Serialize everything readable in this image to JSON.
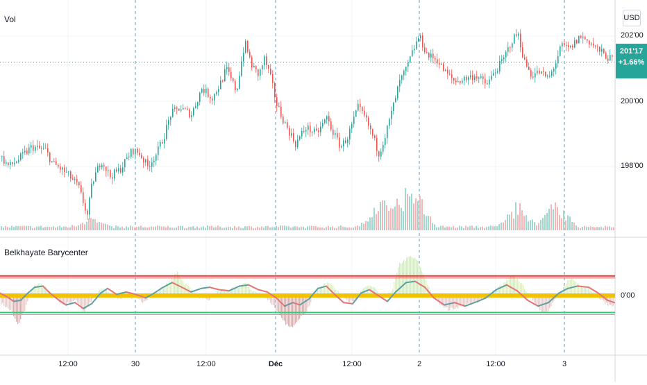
{
  "chart_data": [
    {
      "type": "candlestick",
      "series_label": "Vol",
      "currency": "USD",
      "last_price": "201'17",
      "change": "+1.66%",
      "y_ticks": [
        "202'00",
        "200'00",
        "198'00"
      ],
      "x_ticks": [
        "12:00",
        "30",
        "12:00",
        "Déc",
        "12:00",
        "2",
        "12:00",
        "3"
      ],
      "close_path": [
        [
          0,
          198.3
        ],
        [
          12,
          198.0
        ],
        [
          25,
          198.2
        ],
        [
          45,
          198.6
        ],
        [
          65,
          198.5
        ],
        [
          75,
          198.1
        ],
        [
          95,
          197.8
        ],
        [
          112,
          197.4
        ],
        [
          125,
          196.5
        ],
        [
          132,
          197.5
        ],
        [
          145,
          198.2
        ],
        [
          158,
          197.7
        ],
        [
          172,
          197.9
        ],
        [
          190,
          198.5
        ],
        [
          200,
          198.4
        ],
        [
          212,
          198.0
        ],
        [
          225,
          198.4
        ],
        [
          235,
          198.9
        ],
        [
          245,
          199.6
        ],
        [
          258,
          199.8
        ],
        [
          275,
          199.6
        ],
        [
          290,
          200.4
        ],
        [
          305,
          200.1
        ],
        [
          318,
          200.6
        ],
        [
          325,
          201.0
        ],
        [
          340,
          200.3
        ],
        [
          345,
          201.0
        ],
        [
          352,
          201.8
        ],
        [
          362,
          201.1
        ],
        [
          372,
          200.8
        ],
        [
          380,
          201.3
        ],
        [
          388,
          200.8
        ],
        [
          398,
          199.9
        ],
        [
          410,
          199.3
        ],
        [
          425,
          198.7
        ],
        [
          440,
          199.2
        ],
        [
          455,
          199.0
        ],
        [
          470,
          199.5
        ],
        [
          480,
          199.0
        ],
        [
          490,
          198.6
        ],
        [
          500,
          198.9
        ],
        [
          515,
          199.8
        ],
        [
          525,
          199.5
        ],
        [
          535,
          199.0
        ],
        [
          545,
          198.4
        ],
        [
          555,
          199.0
        ],
        [
          565,
          199.8
        ],
        [
          575,
          200.6
        ],
        [
          585,
          201.0
        ],
        [
          595,
          201.6
        ],
        [
          603,
          202.0
        ],
        [
          615,
          201.4
        ],
        [
          628,
          201.3
        ],
        [
          640,
          200.9
        ],
        [
          655,
          200.6
        ],
        [
          670,
          200.7
        ],
        [
          685,
          200.8
        ],
        [
          700,
          200.5
        ],
        [
          712,
          200.9
        ],
        [
          725,
          201.3
        ],
        [
          735,
          201.8
        ],
        [
          745,
          202.1
        ],
        [
          755,
          201.2
        ],
        [
          765,
          200.8
        ],
        [
          775,
          200.9
        ],
        [
          790,
          200.7
        ],
        [
          800,
          201.2
        ],
        [
          808,
          201.7
        ],
        [
          820,
          201.6
        ],
        [
          835,
          202.0
        ],
        [
          850,
          201.8
        ],
        [
          865,
          201.5
        ],
        [
          885,
          201.2
        ]
      ],
      "volume_bursts": [
        {
          "center": 130,
          "height": 14
        },
        {
          "center": 545,
          "height": 42
        },
        {
          "center": 575,
          "height": 40
        },
        {
          "center": 598,
          "height": 60
        },
        {
          "center": 745,
          "height": 40
        },
        {
          "center": 800,
          "height": 45
        }
      ]
    },
    {
      "type": "oscillator",
      "title": "Belkhayate Barycenter",
      "y_ticks": [
        "0'00"
      ],
      "zero_band": 0,
      "upper_band": 1.6,
      "lower_band": -1.5,
      "histogram_path": [
        [
          0,
          -0.6
        ],
        [
          15,
          -1.3
        ],
        [
          25,
          -2.5
        ],
        [
          35,
          -1.2
        ],
        [
          45,
          0.6
        ],
        [
          55,
          1.0
        ],
        [
          70,
          0.5
        ],
        [
          82,
          -0.3
        ],
        [
          90,
          -0.8
        ],
        [
          100,
          -0.6
        ],
        [
          110,
          -0.4
        ],
        [
          120,
          -1.4
        ],
        [
          130,
          -0.6
        ],
        [
          140,
          0.3
        ],
        [
          148,
          0.6
        ],
        [
          158,
          0.2
        ],
        [
          170,
          -0.2
        ],
        [
          185,
          -0.1
        ],
        [
          195,
          -0.3
        ],
        [
          205,
          -0.5
        ],
        [
          215,
          -0.1
        ],
        [
          230,
          0.5
        ],
        [
          245,
          1.2
        ],
        [
          255,
          2.0
        ],
        [
          265,
          1.0
        ],
        [
          275,
          0.6
        ],
        [
          290,
          -0.3
        ],
        [
          300,
          -0.4
        ],
        [
          312,
          0.3
        ],
        [
          325,
          0.5
        ],
        [
          340,
          0.6
        ],
        [
          352,
          1.1
        ],
        [
          362,
          0.4
        ],
        [
          372,
          0.2
        ],
        [
          385,
          -0.3
        ],
        [
          395,
          -1.0
        ],
        [
          405,
          -2.0
        ],
        [
          418,
          -2.8
        ],
        [
          430,
          -1.9
        ],
        [
          440,
          -1.4
        ],
        [
          450,
          -0.2
        ],
        [
          460,
          0.8
        ],
        [
          475,
          1.1
        ],
        [
          490,
          0.1
        ],
        [
          500,
          -0.4
        ],
        [
          512,
          -0.4
        ],
        [
          520,
          0.4
        ],
        [
          530,
          0.9
        ],
        [
          540,
          0.6
        ],
        [
          548,
          -0.2
        ],
        [
          556,
          -0.1
        ],
        [
          565,
          0.6
        ],
        [
          575,
          2.7
        ],
        [
          590,
          3.3
        ],
        [
          600,
          3.0
        ],
        [
          610,
          1.7
        ],
        [
          620,
          0.2
        ],
        [
          630,
          -0.5
        ],
        [
          645,
          -1.2
        ],
        [
          658,
          -1.0
        ],
        [
          672,
          -0.8
        ],
        [
          685,
          -0.6
        ],
        [
          700,
          0.0
        ],
        [
          712,
          0.5
        ],
        [
          725,
          1.0
        ],
        [
          738,
          1.7
        ],
        [
          748,
          1.2
        ],
        [
          760,
          0.2
        ],
        [
          770,
          -0.6
        ],
        [
          780,
          -1.4
        ],
        [
          790,
          -1.2
        ],
        [
          800,
          -0.2
        ],
        [
          810,
          0.5
        ],
        [
          820,
          1.5
        ],
        [
          835,
          0.9
        ],
        [
          850,
          0.5
        ],
        [
          862,
          -0.2
        ],
        [
          875,
          -0.8
        ]
      ],
      "line_path": [
        [
          0,
          0.2
        ],
        [
          10,
          -0.1
        ],
        [
          20,
          -0.5
        ],
        [
          30,
          -0.4
        ],
        [
          40,
          0.2
        ],
        [
          50,
          0.7
        ],
        [
          62,
          0.8
        ],
        [
          72,
          0.2
        ],
        [
          85,
          -0.4
        ],
        [
          95,
          -0.8
        ],
        [
          108,
          -0.6
        ],
        [
          120,
          -1.1
        ],
        [
          132,
          -0.7
        ],
        [
          145,
          0.2
        ],
        [
          155,
          0.6
        ],
        [
          168,
          0.1
        ],
        [
          182,
          0.3
        ],
        [
          195,
          0.1
        ],
        [
          210,
          -0.2
        ],
        [
          222,
          0.2
        ],
        [
          235,
          0.7
        ],
        [
          248,
          1.1
        ],
        [
          262,
          0.7
        ],
        [
          275,
          0.3
        ],
        [
          290,
          0.6
        ],
        [
          302,
          0.7
        ],
        [
          315,
          0.5
        ],
        [
          330,
          0.4
        ],
        [
          345,
          0.8
        ],
        [
          358,
          0.9
        ],
        [
          372,
          0.5
        ],
        [
          385,
          0.3
        ],
        [
          398,
          -0.2
        ],
        [
          410,
          -0.9
        ],
        [
          422,
          -0.6
        ],
        [
          432,
          -0.8
        ],
        [
          445,
          -0.3
        ],
        [
          458,
          0.6
        ],
        [
          470,
          0.8
        ],
        [
          482,
          0.1
        ],
        [
          495,
          -0.6
        ],
        [
          508,
          -0.7
        ],
        [
          520,
          0.2
        ],
        [
          532,
          0.5
        ],
        [
          545,
          0.0
        ],
        [
          558,
          -0.5
        ],
        [
          570,
          0.3
        ],
        [
          585,
          1.1
        ],
        [
          598,
          1.2
        ],
        [
          612,
          0.7
        ],
        [
          625,
          -0.2
        ],
        [
          640,
          -0.8
        ],
        [
          655,
          -0.6
        ],
        [
          670,
          -0.9
        ],
        [
          688,
          -0.5
        ],
        [
          700,
          -0.2
        ],
        [
          715,
          0.5
        ],
        [
          730,
          0.9
        ],
        [
          745,
          0.4
        ],
        [
          760,
          -0.4
        ],
        [
          775,
          -0.9
        ],
        [
          790,
          -0.6
        ],
        [
          805,
          0.2
        ],
        [
          818,
          0.6
        ],
        [
          832,
          0.8
        ],
        [
          848,
          0.7
        ],
        [
          862,
          0.2
        ],
        [
          875,
          -0.4
        ],
        [
          885,
          -0.6
        ]
      ]
    }
  ]
}
